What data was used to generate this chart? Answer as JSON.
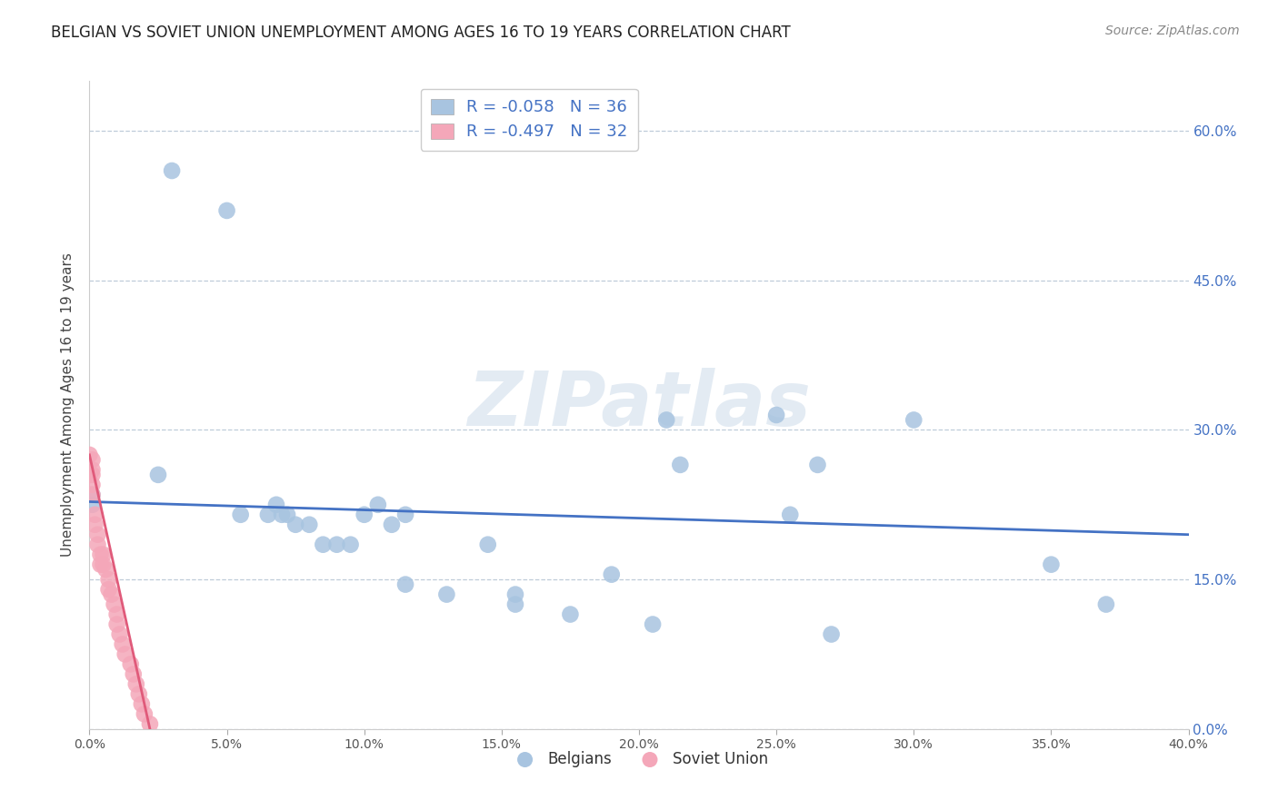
{
  "title": "BELGIAN VS SOVIET UNION UNEMPLOYMENT AMONG AGES 16 TO 19 YEARS CORRELATION CHART",
  "source": "Source: ZipAtlas.com",
  "ylabel": "Unemployment Among Ages 16 to 19 years",
  "xlim": [
    0.0,
    0.4
  ],
  "ylim": [
    0.0,
    0.65
  ],
  "x_ticks": [
    0.0,
    0.05,
    0.1,
    0.15,
    0.2,
    0.25,
    0.3,
    0.35,
    0.4
  ],
  "y_ticks": [
    0.0,
    0.15,
    0.3,
    0.45,
    0.6
  ],
  "belgians_x": [
    0.001,
    0.001,
    0.025,
    0.03,
    0.05,
    0.055,
    0.065,
    0.068,
    0.07,
    0.072,
    0.075,
    0.08,
    0.085,
    0.09,
    0.095,
    0.1,
    0.105,
    0.11,
    0.115,
    0.115,
    0.13,
    0.145,
    0.155,
    0.175,
    0.21,
    0.25,
    0.265,
    0.27,
    0.37,
    0.215,
    0.255,
    0.3,
    0.35,
    0.155,
    0.19,
    0.205
  ],
  "belgians_y": [
    0.235,
    0.225,
    0.255,
    0.56,
    0.52,
    0.215,
    0.215,
    0.225,
    0.215,
    0.215,
    0.205,
    0.205,
    0.185,
    0.185,
    0.185,
    0.215,
    0.225,
    0.205,
    0.215,
    0.145,
    0.135,
    0.185,
    0.125,
    0.115,
    0.31,
    0.315,
    0.265,
    0.095,
    0.125,
    0.265,
    0.215,
    0.31,
    0.165,
    0.135,
    0.155,
    0.105
  ],
  "soviet_x": [
    0.0,
    0.0,
    0.001,
    0.001,
    0.001,
    0.001,
    0.001,
    0.002,
    0.002,
    0.003,
    0.003,
    0.004,
    0.004,
    0.005,
    0.005,
    0.006,
    0.007,
    0.007,
    0.008,
    0.009,
    0.01,
    0.01,
    0.011,
    0.012,
    0.013,
    0.015,
    0.016,
    0.017,
    0.018,
    0.019,
    0.02,
    0.022
  ],
  "soviet_y": [
    0.275,
    0.255,
    0.27,
    0.26,
    0.255,
    0.245,
    0.235,
    0.215,
    0.205,
    0.195,
    0.185,
    0.175,
    0.165,
    0.175,
    0.165,
    0.16,
    0.15,
    0.14,
    0.135,
    0.125,
    0.115,
    0.105,
    0.095,
    0.085,
    0.075,
    0.065,
    0.055,
    0.045,
    0.035,
    0.025,
    0.015,
    0.005
  ],
  "belgians_R": -0.058,
  "belgians_N": 36,
  "soviet_R": -0.497,
  "soviet_N": 32,
  "belgian_color": "#a8c4e0",
  "soviet_color": "#f4a7b9",
  "belgian_line_color": "#4472c4",
  "soviet_line_color": "#e05a7a",
  "background_color": "#ffffff",
  "watermark_text": "ZIPatlas",
  "title_fontsize": 12,
  "axis_label_fontsize": 11,
  "legend_fontsize": 12,
  "source_fontsize": 10,
  "belgian_line_x": [
    0.0,
    0.4
  ],
  "belgian_line_y": [
    0.228,
    0.195
  ],
  "soviet_line_x": [
    0.0,
    0.022
  ],
  "soviet_line_y": [
    0.275,
    0.0
  ]
}
